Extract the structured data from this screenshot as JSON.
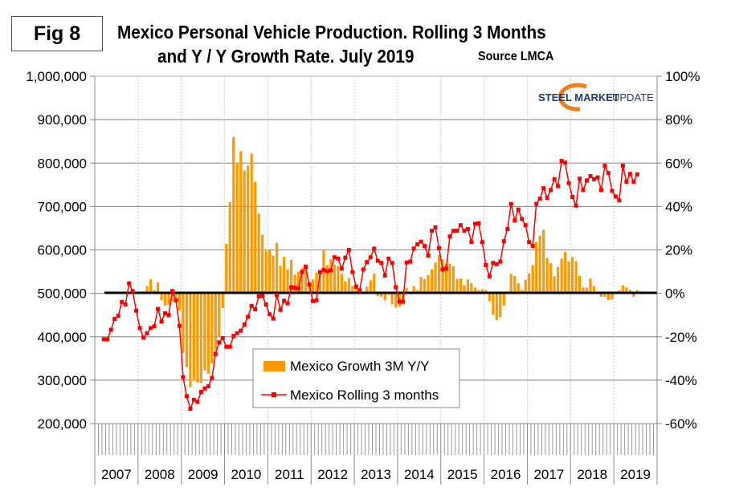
{
  "figure_label": "Fig 8",
  "title_line1": "Mexico Personal Vehicle Production. Rolling 3 Months",
  "title_line2": "and Y / Y Growth Rate. July 2019",
  "source": "Source LMCA",
  "logo": {
    "text_bold": "STEEL MARKET",
    "text_light": "UPDATE",
    "colors": {
      "navy": "#1f3b73",
      "orange": "#f07d1a"
    }
  },
  "chart_data": {
    "type": "bar+line",
    "title": "Mexico Personal Vehicle Production. Rolling 3 Months and Y / Y Growth Rate. July 2019",
    "left_axis": {
      "ylim": [
        200000,
        1000000
      ],
      "ticks": [
        "1,000,000",
        "900,000",
        "800,000",
        "700,000",
        "600,000",
        "500,000",
        "400,000",
        "300,000",
        "200,000"
      ]
    },
    "right_axis": {
      "ylim": [
        -60,
        100
      ],
      "ticks": [
        "100%",
        "80%",
        "60%",
        "40%",
        "20%",
        "0%",
        "-20%",
        "-40%",
        "-60%"
      ]
    },
    "x_tick_labels": [
      "2007",
      "2008",
      "2009",
      "2010",
      "2011",
      "2012",
      "2013",
      "2014",
      "2015",
      "2016",
      "2017",
      "2018",
      "2019"
    ],
    "grid": true,
    "legend_position": "bottom-center",
    "x": [
      "2007-03",
      "2007-04",
      "2007-05",
      "2007-06",
      "2007-07",
      "2007-08",
      "2007-09",
      "2007-10",
      "2007-11",
      "2007-12",
      "2008-01",
      "2008-02",
      "2008-03",
      "2008-04",
      "2008-05",
      "2008-06",
      "2008-07",
      "2008-08",
      "2008-09",
      "2008-10",
      "2008-11",
      "2008-12",
      "2009-01",
      "2009-02",
      "2009-03",
      "2009-04",
      "2009-05",
      "2009-06",
      "2009-07",
      "2009-08",
      "2009-09",
      "2009-10",
      "2009-11",
      "2009-12",
      "2010-01",
      "2010-02",
      "2010-03",
      "2010-04",
      "2010-05",
      "2010-06",
      "2010-07",
      "2010-08",
      "2010-09",
      "2010-10",
      "2010-11",
      "2010-12",
      "2011-01",
      "2011-02",
      "2011-03",
      "2011-04",
      "2011-05",
      "2011-06",
      "2011-07",
      "2011-08",
      "2011-09",
      "2011-10",
      "2011-11",
      "2011-12",
      "2012-01",
      "2012-02",
      "2012-03",
      "2012-04",
      "2012-05",
      "2012-06",
      "2012-07",
      "2012-08",
      "2012-09",
      "2012-10",
      "2012-11",
      "2012-12",
      "2013-01",
      "2013-02",
      "2013-03",
      "2013-04",
      "2013-05",
      "2013-06",
      "2013-07",
      "2013-08",
      "2013-09",
      "2013-10",
      "2013-11",
      "2013-12",
      "2014-01",
      "2014-02",
      "2014-03",
      "2014-04",
      "2014-05",
      "2014-06",
      "2014-07",
      "2014-08",
      "2014-09",
      "2014-10",
      "2014-11",
      "2014-12",
      "2015-01",
      "2015-02",
      "2015-03",
      "2015-04",
      "2015-05",
      "2015-06",
      "2015-07",
      "2015-08",
      "2015-09",
      "2015-10",
      "2015-11",
      "2015-12",
      "2016-01",
      "2016-02",
      "2016-03",
      "2016-04",
      "2016-05",
      "2016-06",
      "2016-07",
      "2016-08",
      "2016-09",
      "2016-10",
      "2016-11",
      "2016-12",
      "2017-01",
      "2017-02",
      "2017-03",
      "2017-04",
      "2017-05",
      "2017-06",
      "2017-07",
      "2017-08",
      "2017-09",
      "2017-10",
      "2017-11",
      "2017-12",
      "2018-01",
      "2018-02",
      "2018-03",
      "2018-04",
      "2018-05",
      "2018-06",
      "2018-07",
      "2018-08",
      "2018-09",
      "2018-10",
      "2018-11",
      "2018-12",
      "2019-01",
      "2019-02",
      "2019-03",
      "2019-04",
      "2019-05",
      "2019-06",
      "2019-07"
    ],
    "series": [
      {
        "name": "Mexico Growth 3M Y/Y",
        "type": "bar",
        "axis": "right",
        "unit": "%",
        "color": "#ff9900",
        "values": [
          null,
          null,
          null,
          null,
          null,
          null,
          null,
          null,
          null,
          null,
          null,
          null,
          3.4,
          6.4,
          1.5,
          5.1,
          -3.2,
          -5.6,
          -5.4,
          -3.7,
          -1.9,
          -7.8,
          -27.4,
          -34,
          -43.2,
          -39.6,
          -41,
          -41.3,
          -35.5,
          -37.1,
          -32.3,
          -27.1,
          -20,
          -6.8,
          22.8,
          42.1,
          72,
          60,
          65.5,
          56.6,
          58.8,
          64.4,
          51.4,
          36.7,
          27,
          19.6,
          20.1,
          17.4,
          23.3,
          12.7,
          16.8,
          11.1,
          15.4,
          8.6,
          10,
          11.6,
          13.4,
          4.6,
          6.4,
          9.5,
          10.4,
          20.2,
          13,
          15.7,
          13.2,
          12.7,
          9,
          5.5,
          7,
          3.4,
          4.3,
          1.4,
          0.5,
          3.1,
          6,
          9.1,
          -1.2,
          -1.6,
          -3.3,
          -0.7,
          -5.1,
          -6.5,
          -6.2,
          -5.1,
          2.7,
          0.5,
          3.3,
          1.4,
          7.5,
          6.7,
          8.4,
          11,
          14.2,
          17.8,
          15.7,
          13.7,
          13.7,
          12.5,
          6.7,
          6.9,
          3.7,
          6.4,
          4.7,
          2.6,
          1.4,
          1.9,
          1.6,
          -3.7,
          -9.9,
          -12.3,
          -11.1,
          -5.6,
          0.2,
          8.9,
          8,
          4.7,
          1.5,
          6.2,
          9.2,
          13,
          23.7,
          26.5,
          29.3,
          16.3,
          13.8,
          7.8,
          12.1,
          16,
          19.1,
          14.7,
          16.8,
          14.8,
          8.1,
          2.7,
          2.6,
          6.8,
          3.3,
          0,
          -1.6,
          -1.6,
          -3.1,
          -2.7,
          0,
          1.4,
          3.7,
          2.7,
          1.6,
          -1.6,
          1.5
        ]
      },
      {
        "name": "Mexico Rolling 3 months",
        "type": "line",
        "axis": "left",
        "unit": "vehicles",
        "color": "#ff0000",
        "values": [
          394000,
          394000,
          416000,
          441000,
          448000,
          480000,
          474000,
          523000,
          505000,
          460000,
          420000,
          398000,
          408000,
          420000,
          424000,
          464000,
          435000,
          454000,
          450000,
          505000,
          484000,
          425000,
          307000,
          263000,
          234000,
          255000,
          250000,
          273000,
          281000,
          286000,
          305000,
          360000,
          387000,
          397000,
          377000,
          377000,
          402000,
          408000,
          414000,
          428000,
          446000,
          471000,
          463000,
          493000,
          494000,
          474000,
          452000,
          442000,
          496000,
          462000,
          483000,
          477000,
          514000,
          513000,
          511000,
          549000,
          561000,
          520000,
          482000,
          484000,
          549000,
          554000,
          551000,
          553000,
          583000,
          580000,
          557000,
          582000,
          600000,
          549000,
          515000,
          507000,
          555000,
          572000,
          583000,
          603000,
          575000,
          570000,
          541000,
          580000,
          570000,
          514000,
          481000,
          481000,
          571000,
          573000,
          603000,
          613000,
          619000,
          609000,
          587000,
          644000,
          652000,
          604000,
          555000,
          557000,
          631000,
          644000,
          644000,
          657000,
          644000,
          648000,
          618000,
          660000,
          661000,
          618000,
          565000,
          539000,
          570000,
          567000,
          573000,
          620000,
          648000,
          706000,
          668000,
          693000,
          671000,
          657000,
          618000,
          609000,
          706000,
          718000,
          742000,
          720000,
          738000,
          763000,
          747000,
          805000,
          801000,
          754000,
          722000,
          702000,
          764000,
          738000,
          760000,
          770000,
          763000,
          767000,
          738000,
          794000,
          777000,
          736000,
          723000,
          714000,
          794000,
          757000,
          775000,
          757000,
          774000
        ]
      }
    ]
  }
}
